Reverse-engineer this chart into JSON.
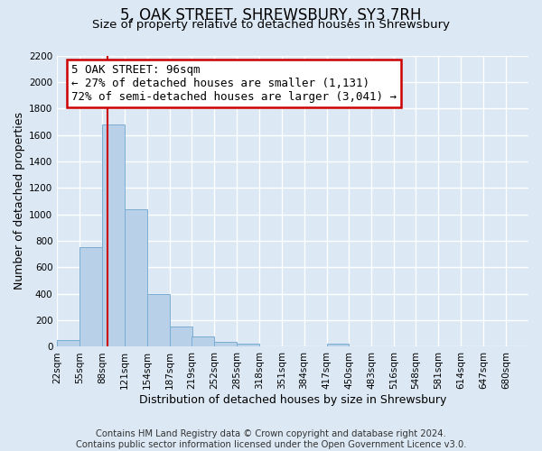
{
  "title": "5, OAK STREET, SHREWSBURY, SY3 7RH",
  "subtitle": "Size of property relative to detached houses in Shrewsbury",
  "xlabel": "Distribution of detached houses by size in Shrewsbury",
  "ylabel": "Number of detached properties",
  "footer_line1": "Contains HM Land Registry data © Crown copyright and database right 2024.",
  "footer_line2": "Contains public sector information licensed under the Open Government Licence v3.0.",
  "bin_labels": [
    "22sqm",
    "55sqm",
    "88sqm",
    "121sqm",
    "154sqm",
    "187sqm",
    "219sqm",
    "252sqm",
    "285sqm",
    "318sqm",
    "351sqm",
    "384sqm",
    "417sqm",
    "450sqm",
    "483sqm",
    "516sqm",
    "548sqm",
    "581sqm",
    "614sqm",
    "647sqm",
    "680sqm"
  ],
  "bin_edges": [
    22,
    55,
    88,
    121,
    154,
    187,
    219,
    252,
    285,
    318,
    351,
    384,
    417,
    450,
    483,
    516,
    548,
    581,
    614,
    647,
    680
  ],
  "bar_values": [
    50,
    750,
    1680,
    1040,
    400,
    150,
    80,
    40,
    25,
    0,
    0,
    0,
    25,
    0,
    0,
    0,
    0,
    0,
    0,
    0
  ],
  "bar_color": "#b8d0e8",
  "bar_edge_color": "#7aadd4",
  "red_line_x": 96,
  "annotation_title": "5 OAK STREET: 96sqm",
  "annotation_line1": "← 27% of detached houses are smaller (1,131)",
  "annotation_line2": "72% of semi-detached houses are larger (3,041) →",
  "annotation_box_color": "#ffffff",
  "annotation_box_edge": "#cc0000",
  "red_line_color": "#cc0000",
  "ylim_max": 2200,
  "yticks": [
    0,
    200,
    400,
    600,
    800,
    1000,
    1200,
    1400,
    1600,
    1800,
    2000,
    2200
  ],
  "background_color": "#dce8f4",
  "grid_color": "#ffffff",
  "title_fontsize": 12,
  "subtitle_fontsize": 9.5,
  "axis_label_fontsize": 9,
  "tick_fontsize": 7.5,
  "footer_fontsize": 7.2,
  "annot_fontsize": 9
}
